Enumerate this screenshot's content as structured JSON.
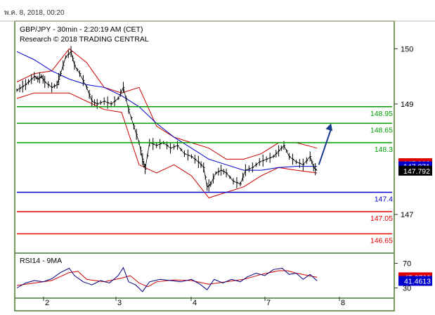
{
  "header": {
    "timestamp": "พ.ค. 8, 2018, 00:20"
  },
  "chart_data": {
    "type": "candlestick",
    "title": "GBP/JPY - 30min - 2:20:19 AM (CET)",
    "subtitle": "Research © 2018 TRADING CENTRAL",
    "colors": {
      "background_outer": "#ffffff",
      "frame": "#4d7a2e",
      "support_resistance_green": "#00a000",
      "pivot_blue": "#0000c8",
      "target_red": "#e00000",
      "bollinger": "#cc0000",
      "moving_average": "#0000cc",
      "price": "#000000",
      "arrow": "#1a3a8a",
      "rsi_line": "#000080",
      "rsi_ma": "#cc0000"
    },
    "price_axis": {
      "ylim": [
        146.35,
        150.45
      ],
      "ticks": [
        "150",
        "149",
        "147"
      ],
      "tick_values": [
        150,
        149,
        147
      ]
    },
    "x_axis": {
      "ticks": [
        "2",
        "3",
        "4",
        "7",
        "8"
      ]
    },
    "levels": [
      {
        "value": 148.95,
        "label": "148.95",
        "color": "green"
      },
      {
        "value": 148.65,
        "label": "148.65",
        "color": "green"
      },
      {
        "value": 148.3,
        "label": "148.3",
        "color": "green"
      },
      {
        "value": 147.4,
        "label": "147.4",
        "color": "blue"
      },
      {
        "value": 147.05,
        "label": "147.05",
        "color": "red"
      },
      {
        "value": 146.65,
        "label": "146.65",
        "color": "red"
      }
    ],
    "price_badges": [
      {
        "value": 147.928,
        "label": "147.928",
        "bg": "#e00000"
      },
      {
        "value": 147.871,
        "label": "147.871",
        "bg": "#0000cc"
      },
      {
        "value": 147.792,
        "label": "147.792",
        "bg": "#000000"
      }
    ],
    "price_series": [
      {
        "t": 0,
        "v": 149.25
      },
      {
        "t": 0.5,
        "v": 149.35
      },
      {
        "t": 1,
        "v": 149.5
      },
      {
        "t": 1.2,
        "v": 149.45
      },
      {
        "t": 1.4,
        "v": 149.5
      },
      {
        "t": 1.6,
        "v": 149.4
      },
      {
        "t": 2,
        "v": 149.3
      },
      {
        "t": 2.3,
        "v": 149.35
      },
      {
        "t": 2.5,
        "v": 149.55
      },
      {
        "t": 2.8,
        "v": 149.85
      },
      {
        "t": 3.1,
        "v": 149.95
      },
      {
        "t": 3.3,
        "v": 149.7
      },
      {
        "t": 3.6,
        "v": 149.55
      },
      {
        "t": 4,
        "v": 149.3
      },
      {
        "t": 4.3,
        "v": 149.05
      },
      {
        "t": 4.6,
        "v": 149.0
      },
      {
        "t": 5,
        "v": 149.05
      },
      {
        "t": 5.4,
        "v": 149.0
      },
      {
        "t": 5.8,
        "v": 149.1
      },
      {
        "t": 6.1,
        "v": 149.3
      },
      {
        "t": 6.4,
        "v": 148.9
      },
      {
        "t": 6.7,
        "v": 148.6
      },
      {
        "t": 7.0,
        "v": 148.3
      },
      {
        "t": 7.2,
        "v": 148.0
      },
      {
        "t": 7.35,
        "v": 147.82
      },
      {
        "t": 7.6,
        "v": 148.3
      },
      {
        "t": 8,
        "v": 148.25
      },
      {
        "t": 8.4,
        "v": 148.3
      },
      {
        "t": 8.8,
        "v": 148.2
      },
      {
        "t": 9.2,
        "v": 148.25
      },
      {
        "t": 9.6,
        "v": 148.1
      },
      {
        "t": 10,
        "v": 148.05
      },
      {
        "t": 10.4,
        "v": 147.95
      },
      {
        "t": 10.7,
        "v": 147.85
      },
      {
        "t": 10.9,
        "v": 147.5
      },
      {
        "t": 11.1,
        "v": 147.55
      },
      {
        "t": 11.4,
        "v": 147.75
      },
      {
        "t": 11.7,
        "v": 147.8
      },
      {
        "t": 12,
        "v": 147.75
      },
      {
        "t": 12.4,
        "v": 147.6
      },
      {
        "t": 12.8,
        "v": 147.55
      },
      {
        "t": 13.1,
        "v": 147.8
      },
      {
        "t": 13.5,
        "v": 147.85
      },
      {
        "t": 13.9,
        "v": 147.95
      },
      {
        "t": 14.3,
        "v": 148.0
      },
      {
        "t": 14.7,
        "v": 148.05
      },
      {
        "t": 15.0,
        "v": 148.15
      },
      {
        "t": 15.3,
        "v": 148.25
      },
      {
        "t": 15.6,
        "v": 148.05
      },
      {
        "t": 16,
        "v": 147.95
      },
      {
        "t": 16.4,
        "v": 147.9
      },
      {
        "t": 16.8,
        "v": 148.05
      },
      {
        "t": 17.0,
        "v": 147.85
      },
      {
        "t": 17.2,
        "v": 147.79
      }
    ],
    "bollinger_upper": [
      {
        "t": 0,
        "v": 149.4
      },
      {
        "t": 1,
        "v": 149.55
      },
      {
        "t": 2,
        "v": 149.6
      },
      {
        "t": 3,
        "v": 150.0
      },
      {
        "t": 4,
        "v": 149.75
      },
      {
        "t": 5,
        "v": 149.3
      },
      {
        "t": 6,
        "v": 149.2
      },
      {
        "t": 7,
        "v": 149.3
      },
      {
        "t": 8,
        "v": 148.6
      },
      {
        "t": 9,
        "v": 148.4
      },
      {
        "t": 10,
        "v": 148.3
      },
      {
        "t": 11,
        "v": 148.2
      },
      {
        "t": 12,
        "v": 148.0
      },
      {
        "t": 13,
        "v": 148.0
      },
      {
        "t": 14,
        "v": 148.1
      },
      {
        "t": 15,
        "v": 148.3
      },
      {
        "t": 16,
        "v": 148.3
      },
      {
        "t": 17.2,
        "v": 148.2
      }
    ],
    "bollinger_lower": [
      {
        "t": 0,
        "v": 149.1
      },
      {
        "t": 1,
        "v": 149.2
      },
      {
        "t": 2,
        "v": 149.2
      },
      {
        "t": 3,
        "v": 149.2
      },
      {
        "t": 4,
        "v": 149.05
      },
      {
        "t": 5,
        "v": 148.9
      },
      {
        "t": 6,
        "v": 148.85
      },
      {
        "t": 7,
        "v": 147.9
      },
      {
        "t": 8,
        "v": 147.75
      },
      {
        "t": 9,
        "v": 147.9
      },
      {
        "t": 10,
        "v": 147.7
      },
      {
        "t": 11,
        "v": 147.3
      },
      {
        "t": 12,
        "v": 147.4
      },
      {
        "t": 13,
        "v": 147.5
      },
      {
        "t": 14,
        "v": 147.7
      },
      {
        "t": 15,
        "v": 147.85
      },
      {
        "t": 16,
        "v": 147.8
      },
      {
        "t": 17.2,
        "v": 147.75
      }
    ],
    "moving_average": [
      {
        "t": 0,
        "v": 149.95
      },
      {
        "t": 1,
        "v": 149.8
      },
      {
        "t": 2,
        "v": 149.6
      },
      {
        "t": 3,
        "v": 149.45
      },
      {
        "t": 4,
        "v": 149.35
      },
      {
        "t": 5,
        "v": 149.3
      },
      {
        "t": 6,
        "v": 149.15
      },
      {
        "t": 7,
        "v": 148.95
      },
      {
        "t": 8,
        "v": 148.65
      },
      {
        "t": 9,
        "v": 148.4
      },
      {
        "t": 10,
        "v": 148.2
      },
      {
        "t": 11,
        "v": 148.0
      },
      {
        "t": 12,
        "v": 147.9
      },
      {
        "t": 13,
        "v": 147.8
      },
      {
        "t": 14,
        "v": 147.8
      },
      {
        "t": 15,
        "v": 147.85
      },
      {
        "t": 16,
        "v": 147.87
      },
      {
        "t": 17.2,
        "v": 147.87
      }
    ],
    "forecast_arrow": {
      "from": {
        "t": 17.3,
        "v": 147.9
      },
      "to": {
        "t": 18.0,
        "v": 148.65
      }
    },
    "rsi": {
      "title": "RSI14 - 9MA",
      "ylim": [
        18,
        82
      ],
      "ticks": [
        "70",
        "30"
      ],
      "tick_values": [
        70,
        30
      ],
      "badges": [
        {
          "value": 47.2763,
          "label": "47.2763",
          "bg": "#e00000"
        },
        {
          "value": 41.4613,
          "label": "41.4613",
          "bg": "#0000cc"
        }
      ],
      "rsi_series": [
        {
          "t": 0,
          "v": 30
        },
        {
          "t": 0.5,
          "v": 38
        },
        {
          "t": 1,
          "v": 42
        },
        {
          "t": 1.5,
          "v": 40
        },
        {
          "t": 2,
          "v": 45
        },
        {
          "t": 2.5,
          "v": 55
        },
        {
          "t": 3,
          "v": 62
        },
        {
          "t": 3.3,
          "v": 50
        },
        {
          "t": 3.8,
          "v": 40
        },
        {
          "t": 4.3,
          "v": 35
        },
        {
          "t": 4.8,
          "v": 42
        },
        {
          "t": 5.3,
          "v": 38
        },
        {
          "t": 5.8,
          "v": 50
        },
        {
          "t": 6.1,
          "v": 63
        },
        {
          "t": 6.4,
          "v": 40
        },
        {
          "t": 6.8,
          "v": 35
        },
        {
          "t": 7.2,
          "v": 24
        },
        {
          "t": 7.6,
          "v": 40
        },
        {
          "t": 8.2,
          "v": 44
        },
        {
          "t": 8.8,
          "v": 42
        },
        {
          "t": 9.4,
          "v": 40
        },
        {
          "t": 10,
          "v": 44
        },
        {
          "t": 10.5,
          "v": 36
        },
        {
          "t": 10.9,
          "v": 27
        },
        {
          "t": 11.3,
          "v": 44
        },
        {
          "t": 11.8,
          "v": 38
        },
        {
          "t": 12.3,
          "v": 44
        },
        {
          "t": 12.8,
          "v": 40
        },
        {
          "t": 13.2,
          "v": 48
        },
        {
          "t": 13.7,
          "v": 54
        },
        {
          "t": 14.2,
          "v": 50
        },
        {
          "t": 14.7,
          "v": 60
        },
        {
          "t": 15.2,
          "v": 62
        },
        {
          "t": 15.6,
          "v": 52
        },
        {
          "t": 16,
          "v": 54
        },
        {
          "t": 16.4,
          "v": 44
        },
        {
          "t": 16.8,
          "v": 52
        },
        {
          "t": 17.2,
          "v": 41.46
        }
      ],
      "ma_series": [
        {
          "t": 0,
          "v": 34
        },
        {
          "t": 1,
          "v": 38
        },
        {
          "t": 2,
          "v": 42
        },
        {
          "t": 3,
          "v": 55
        },
        {
          "t": 3.5,
          "v": 57
        },
        {
          "t": 4,
          "v": 44
        },
        {
          "t": 5,
          "v": 40
        },
        {
          "t": 6,
          "v": 46
        },
        {
          "t": 6.5,
          "v": 50
        },
        {
          "t": 7,
          "v": 38
        },
        {
          "t": 7.5,
          "v": 32
        },
        {
          "t": 8,
          "v": 40
        },
        {
          "t": 9,
          "v": 43
        },
        {
          "t": 10,
          "v": 42
        },
        {
          "t": 11,
          "v": 36
        },
        {
          "t": 12,
          "v": 40
        },
        {
          "t": 13,
          "v": 44
        },
        {
          "t": 14,
          "v": 52
        },
        {
          "t": 15,
          "v": 58
        },
        {
          "t": 15.5,
          "v": 58
        },
        {
          "t": 16,
          "v": 54
        },
        {
          "t": 17.2,
          "v": 47.28
        }
      ]
    }
  }
}
